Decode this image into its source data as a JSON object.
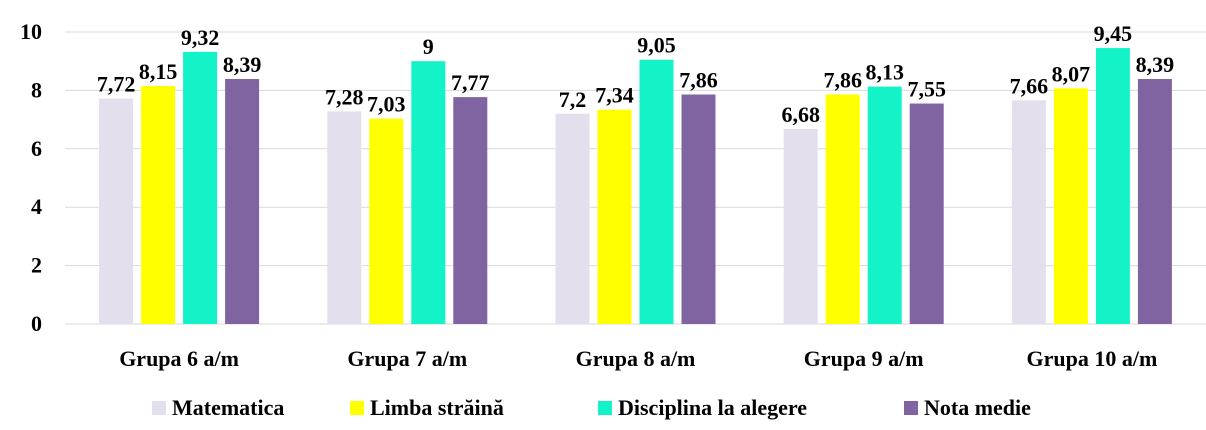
{
  "chart_data": {
    "type": "bar",
    "categories": [
      "Grupa 6 a/m",
      "Grupa 7 a/m",
      "Grupa 8 a/m",
      "Grupa 9 a/m",
      "Grupa 10 a/m"
    ],
    "series": [
      {
        "name": "Matematica",
        "color": "#e3dfec",
        "values": [
          7.72,
          7.28,
          7.2,
          6.68,
          7.66
        ],
        "labels": [
          "7,72",
          "7,28",
          "7,2",
          "6,68",
          "7,66"
        ]
      },
      {
        "name": "Limba străină",
        "color": "#ffff00",
        "values": [
          8.15,
          7.03,
          7.34,
          7.86,
          8.07
        ],
        "labels": [
          "8,15",
          "7,03",
          "7,34",
          "7,86",
          "8,07"
        ]
      },
      {
        "name": "Disciplina la alegere",
        "color": "#14f2c8",
        "values": [
          9.32,
          9,
          9.05,
          8.13,
          9.45
        ],
        "labels": [
          "9,32",
          "9",
          "9,05",
          "8,13",
          "9,45"
        ]
      },
      {
        "name": "Nota medie",
        "color": "#8064a2",
        "values": [
          8.39,
          7.77,
          7.86,
          7.55,
          8.39
        ],
        "labels": [
          "8,39",
          "7,77",
          "7,86",
          "7,55",
          "8,39"
        ]
      }
    ],
    "yticks": [
      "0",
      "2",
      "4",
      "6",
      "8",
      "10"
    ],
    "ylim": [
      0,
      10
    ],
    "grid": true,
    "legend_position": "bottom",
    "title": "",
    "xlabel": "",
    "ylabel": ""
  }
}
